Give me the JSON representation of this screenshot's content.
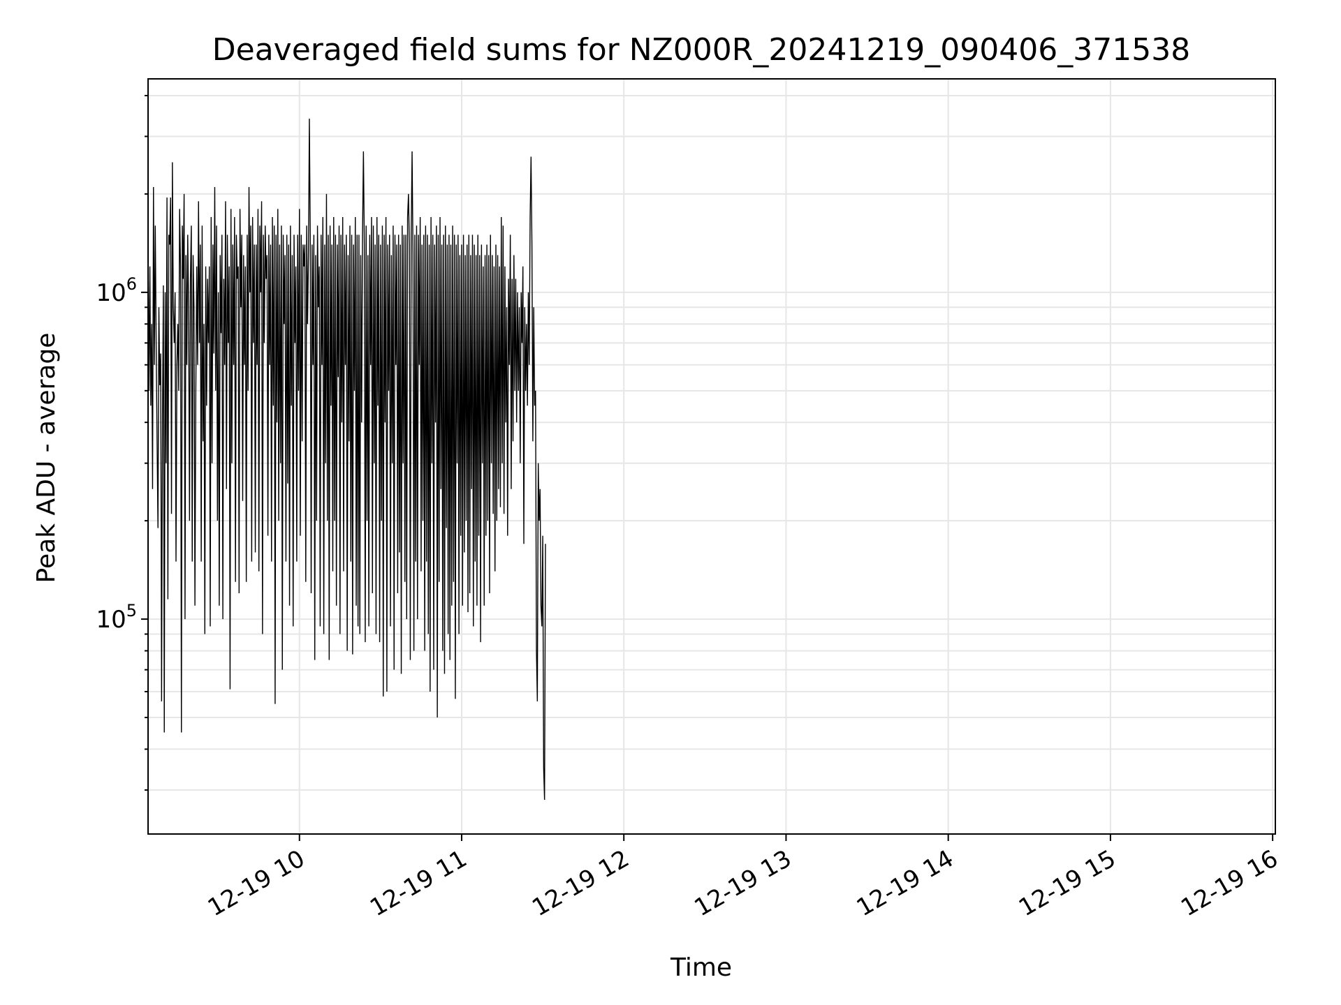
{
  "chart_data": {
    "type": "line",
    "title": "Deaveraged field sums for NZ000R_20241219_090406_371538",
    "xlabel": "Time",
    "ylabel": "Peak ADU - average",
    "x_scale": "time",
    "y_scale": "log",
    "xlim": [
      "2024-12-19 09:04",
      "2024-12-19 16:01"
    ],
    "ylim": [
      22000,
      4500000
    ],
    "x_ticks": [
      {
        "value": "2024-12-19 10:00",
        "label": "12-19 10"
      },
      {
        "value": "2024-12-19 11:00",
        "label": "12-19 11"
      },
      {
        "value": "2024-12-19 12:00",
        "label": "12-19 12"
      },
      {
        "value": "2024-12-19 13:00",
        "label": "12-19 13"
      },
      {
        "value": "2024-12-19 14:00",
        "label": "12-19 14"
      },
      {
        "value": "2024-12-19 15:00",
        "label": "12-19 15"
      },
      {
        "value": "2024-12-19 16:00",
        "label": "12-19 16"
      }
    ],
    "y_ticks": [
      {
        "value": 100000,
        "base": "10",
        "exp": "5"
      },
      {
        "value": 1000000,
        "base": "10",
        "exp": "6"
      }
    ],
    "grid": true,
    "line_color": "#000000",
    "grid_color": "#e6e6e6",
    "series": [
      {
        "x_start": "2024-12-19 09:04",
        "x_step_seconds": 20,
        "values": [
          1400000,
          500000,
          1200000,
          450000,
          800000,
          250000,
          2100000,
          600000,
          1600000,
          700000,
          350000,
          190000,
          900000,
          520000,
          650000,
          56000,
          420000,
          1050000,
          45000,
          1000000,
          300000,
          1950000,
          115000,
          1500000,
          1400000,
          1950000,
          210000,
          2500000,
          900000,
          700000,
          1000000,
          150000,
          600000,
          800000,
          500000,
          1800000,
          1200000,
          45000,
          1600000,
          1100000,
          2000000,
          100000,
          1300000,
          600000,
          1500000,
          900000,
          200000,
          1100000,
          1600000,
          150000,
          1300000,
          900000,
          110000,
          500000,
          1200000,
          600000,
          1900000,
          700000,
          1400000,
          150000,
          1600000,
          350000,
          800000,
          90000,
          1200000,
          450000,
          1100000,
          700000,
          1200000,
          95000,
          1700000,
          300000,
          1400000,
          650000,
          2100000,
          500000,
          1600000,
          200000,
          1000000,
          110000,
          1300000,
          750000,
          1500000,
          100000,
          1100000,
          600000,
          1900000,
          250000,
          1500000,
          700000,
          1200000,
          61000,
          1800000,
          300000,
          1400000,
          600000,
          1700000,
          130000,
          1500000,
          1100000,
          1200000,
          120000,
          1800000,
          900000,
          1500000,
          230000,
          1300000,
          600000,
          1200000,
          130000,
          1500000,
          500000,
          2100000,
          1000000,
          1600000,
          150000,
          1700000,
          700000,
          1400000,
          160000,
          1400000,
          600000,
          1800000,
          140000,
          1600000,
          1000000,
          1900000,
          90000,
          1500000,
          700000,
          1600000,
          1100000,
          1300000,
          180000,
          1500000,
          600000,
          1400000,
          150000,
          1700000,
          450000,
          1600000,
          55000,
          1500000,
          400000,
          1800000,
          200000,
          1400000,
          300000,
          1600000,
          70000,
          1500000,
          800000,
          1300000,
          150000,
          1500000,
          260000,
          1400000,
          110000,
          1600000,
          450000,
          1300000,
          95000,
          1500000,
          700000,
          1200000,
          150000,
          1500000,
          500000,
          1800000,
          180000,
          1500000,
          350000,
          1400000,
          1200000,
          1400000,
          130000,
          1600000,
          800000,
          1300000,
          3400000,
          1500000,
          120000,
          1400000,
          600000,
          1500000,
          75000,
          1300000,
          200000,
          1600000,
          900000,
          1200000,
          95000,
          1500000,
          600000,
          1700000,
          90000,
          1400000,
          300000,
          2000000,
          200000,
          1500000,
          75000,
          1600000,
          450000,
          1400000,
          140000,
          1700000,
          200000,
          1500000,
          110000,
          1400000,
          550000,
          1600000,
          90000,
          1500000,
          400000,
          1700000,
          140000,
          1400000,
          600000,
          1500000,
          80000,
          1300000,
          350000,
          1600000,
          150000,
          1500000,
          78000,
          1400000,
          500000,
          1700000,
          110000,
          1500000,
          95000,
          1500000,
          90000,
          1300000,
          400000,
          1500000,
          2700000,
          1400000,
          85000,
          1600000,
          200000,
          1300000,
          95000,
          1500000,
          600000,
          1700000,
          120000,
          1600000,
          300000,
          1400000,
          90000,
          1700000,
          450000,
          1500000,
          85000,
          1400000,
          200000,
          1600000,
          58000,
          1500000,
          400000,
          1700000,
          60000,
          1400000,
          500000,
          1500000,
          95000,
          1300000,
          300000,
          1600000,
          70000,
          1500000,
          600000,
          1400000,
          120000,
          1500000,
          160000,
          1400000,
          68000,
          1600000,
          300000,
          1500000,
          130000,
          1500000,
          100000,
          1700000,
          2000000,
          1400000,
          75000,
          1500000,
          2700000,
          1300000,
          80000,
          1500000,
          150000,
          1600000,
          100000,
          1500000,
          600000,
          1700000,
          140000,
          1400000,
          200000,
          1500000,
          80000,
          1600000,
          150000,
          1500000,
          90000,
          1400000,
          60000,
          1700000,
          300000,
          1500000,
          70000,
          1400000,
          400000,
          1600000,
          50000,
          1500000,
          130000,
          1700000,
          250000,
          1400000,
          80000,
          1500000,
          68000,
          1600000,
          190000,
          1400000,
          90000,
          1500000,
          75000,
          1400000,
          110000,
          1600000,
          130000,
          1500000,
          57000,
          1400000,
          300000,
          1500000,
          90000,
          1300000,
          180000,
          1400000,
          110000,
          1500000,
          160000,
          1300000,
          200000,
          1400000,
          105000,
          1500000,
          120000,
          1300000,
          250000,
          1500000,
          95000,
          1400000,
          150000,
          1300000,
          110000,
          1500000,
          180000,
          1300000,
          85000,
          1400000,
          300000,
          1200000,
          110000,
          1300000,
          180000,
          1400000,
          200000,
          1300000,
          120000,
          1500000,
          300000,
          1300000,
          210000,
          1200000,
          140000,
          1400000,
          200000,
          1300000,
          250000,
          1200000,
          220000,
          1700000,
          300000,
          1600000,
          210000,
          1200000,
          400000,
          900000,
          180000,
          1100000,
          600000,
          1500000,
          250000,
          1100000,
          350000,
          1300000,
          500000,
          1100000,
          400000,
          1000000,
          500000,
          900000,
          300000,
          1000000,
          700000,
          1200000,
          170000,
          900000,
          500000,
          800000,
          450000,
          1000000,
          600000,
          1700000,
          2600000,
          1400000,
          350000,
          900000,
          450000,
          500000,
          80000,
          56000,
          300000,
          200000,
          250000,
          110000,
          95000,
          180000,
          35000,
          28000,
          170000
        ]
      }
    ]
  }
}
